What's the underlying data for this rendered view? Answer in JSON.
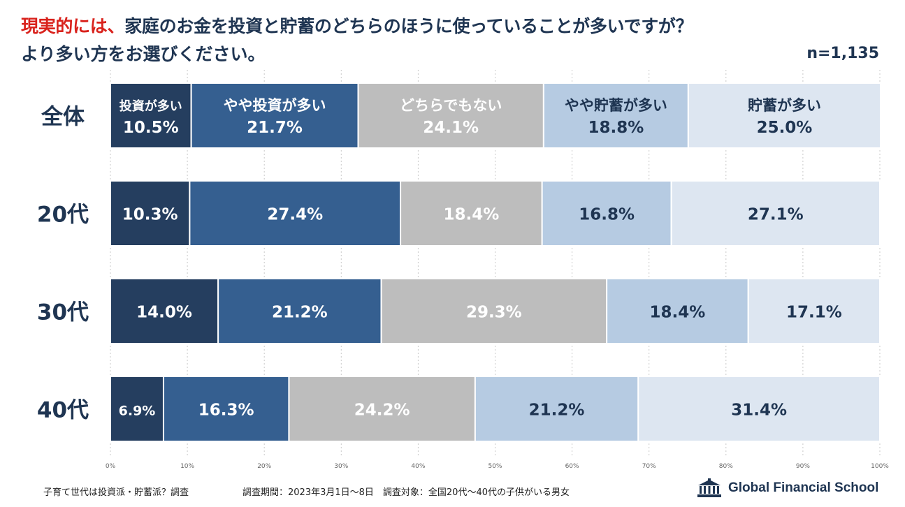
{
  "header": {
    "title_highlight": "現実的には、",
    "title_rest": "家庭のお金を投資と貯蓄のどちらのほうに使っていることが多いですが？",
    "title_line2": "より多い方をお選びください。",
    "sample_size": "n=1,135"
  },
  "colors": {
    "investing_more": "#253e5f",
    "somewhat_investing": "#355f90",
    "neither": "#bdbdbd",
    "somewhat_saving": "#b6cbe2",
    "saving_more": "#dde6f1",
    "label_dark": "#1f3552",
    "label_light": "#ffffff"
  },
  "chart_data": {
    "type": "bar",
    "orientation": "horizontal",
    "stacked": "100%",
    "categories": [
      "全体",
      "20代",
      "30代",
      "40代"
    ],
    "series": [
      {
        "name": "投資が多い",
        "values": [
          10.5,
          10.3,
          14.0,
          6.9
        ]
      },
      {
        "name": "やや投資が多い",
        "values": [
          21.7,
          27.4,
          21.2,
          16.3
        ]
      },
      {
        "name": "どちらでもない",
        "values": [
          24.1,
          18.4,
          29.3,
          24.2
        ]
      },
      {
        "name": "やや貯蓄が多い",
        "values": [
          18.8,
          16.8,
          18.4,
          21.2
        ]
      },
      {
        "name": "貯蓄が多い",
        "values": [
          25.0,
          27.1,
          17.1,
          31.4
        ]
      }
    ],
    "value_labels": [
      [
        "10.5%",
        "21.7%",
        "24.1%",
        "18.8%",
        "25.0%"
      ],
      [
        "10.3%",
        "27.4%",
        "18.4%",
        "16.8%",
        "27.1%"
      ],
      [
        "14.0%",
        "21.2%",
        "29.3%",
        "18.4%",
        "17.1%"
      ],
      [
        "6.9%",
        "16.3%",
        "24.2%",
        "21.2%",
        "31.4%"
      ]
    ],
    "xlim": [
      0,
      100
    ],
    "x_ticks": [
      0,
      10,
      20,
      30,
      40,
      50,
      60,
      70,
      80,
      90,
      100
    ],
    "x_tick_labels": [
      "0%",
      "10%",
      "20%",
      "30%",
      "40%",
      "50%",
      "60%",
      "70%",
      "80%",
      "90%",
      "100%"
    ],
    "grid": "vertical dotted",
    "legend": "inside first bar"
  },
  "footer": {
    "survey_name": "子育て世代は投資派・貯蓄派？調査",
    "survey_details": "調査期間：2023年3月1日～8日　調査対象：全国20代～40代の子供がいる男女",
    "brand": "Global Financial School"
  }
}
